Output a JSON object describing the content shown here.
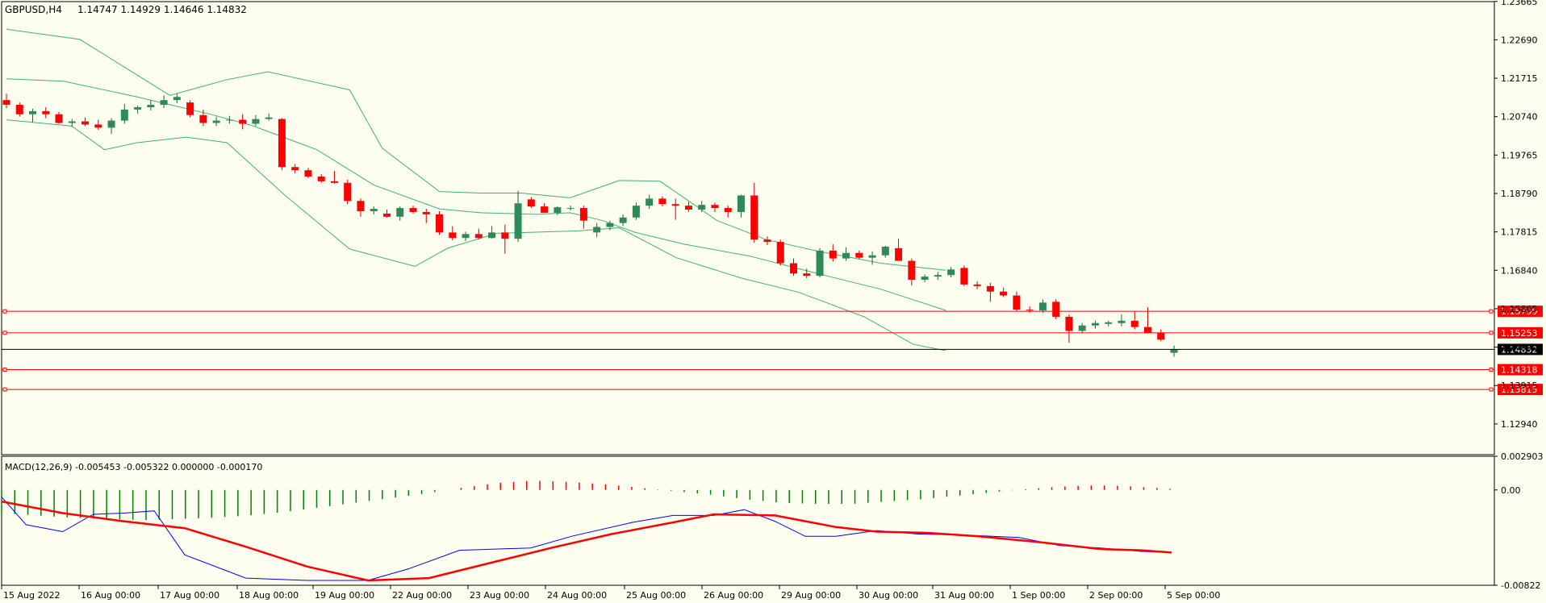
{
  "header": {
    "symbol": "GBPUSD,H4",
    "ohlc": "1.14747 1.14929 1.14646 1.14832"
  },
  "macd": {
    "label": "MACD(12,26,9) -0.005453 -0.005322 0.000000 -0.000170"
  },
  "colors": {
    "background": "#fefef0",
    "bull_candle": "#2e8b57",
    "bear_candle": "#ff0000",
    "bands": "#3cb371",
    "level_line": "#ff0000",
    "macd_signal": "#ff0000",
    "macd_main": "#0000ff",
    "hist_pos": "#ff0000",
    "hist_neg": "#008000"
  },
  "chart_data": [
    {
      "type": "candlestick",
      "name": "price",
      "y_ticks": [
        "1.23665",
        "1.22690",
        "1.21715",
        "1.20740",
        "1.19765",
        "1.18790",
        "1.17815",
        "1.16840",
        "1.15865",
        "1.14890",
        "1.13915",
        "1.12940"
      ],
      "ylim": [
        1.1216,
        1.2366
      ],
      "x_ticks": [
        "15 Aug 2022",
        "16 Aug 00:00",
        "17 Aug 00:00",
        "18 Aug 00:00",
        "19 Aug 00:00",
        "22 Aug 00:00",
        "23 Aug 00:00",
        "24 Aug 00:00",
        "25 Aug 00:00",
        "26 Aug 00:00",
        "29 Aug 00:00",
        "30 Aug 00:00",
        "31 Aug 00:00",
        "1 Sep 00:00",
        "2 Sep 00:00",
        "5 Sep 00:00"
      ],
      "candles": [
        [
          1.2116,
          1.2132,
          1.2096,
          1.2104
        ],
        [
          1.2104,
          1.211,
          1.2074,
          1.208
        ],
        [
          1.208,
          1.2094,
          1.206,
          1.2088
        ],
        [
          1.2088,
          1.2098,
          1.207,
          1.208
        ],
        [
          1.208,
          1.2086,
          1.2056,
          1.2058
        ],
        [
          1.2058,
          1.2068,
          1.2048,
          1.2062
        ],
        [
          1.2062,
          1.2072,
          1.205,
          1.2054
        ],
        [
          1.2054,
          1.2066,
          1.204,
          1.2046
        ],
        [
          1.2046,
          1.207,
          1.203,
          1.2064
        ],
        [
          1.2064,
          1.2106,
          1.2056,
          1.2092
        ],
        [
          1.2092,
          1.2102,
          1.2082,
          1.2098
        ],
        [
          1.2098,
          1.2116,
          1.209,
          1.2104
        ],
        [
          1.2104,
          1.2128,
          1.2096,
          1.2116
        ],
        [
          1.2116,
          1.2132,
          1.2108,
          1.2124
        ],
        [
          1.211,
          1.2116,
          1.2072,
          1.2078
        ],
        [
          1.2078,
          1.2092,
          1.205,
          1.2058
        ],
        [
          1.2058,
          1.2074,
          1.205,
          1.2064
        ],
        [
          1.2064,
          1.2076,
          1.2056,
          1.2066
        ],
        [
          1.2066,
          1.208,
          1.2042,
          1.2056
        ],
        [
          1.2056,
          1.2078,
          1.205,
          1.2068
        ],
        [
          1.2068,
          1.2082,
          1.2064,
          1.2072
        ],
        [
          1.2068,
          1.207,
          1.1938,
          1.1946
        ],
        [
          1.1946,
          1.1954,
          1.193,
          1.1938
        ],
        [
          1.1938,
          1.1944,
          1.1918,
          1.1922
        ],
        [
          1.1922,
          1.1928,
          1.1906,
          1.191
        ],
        [
          1.191,
          1.1936,
          1.1904,
          1.1906
        ],
        [
          1.1906,
          1.1914,
          1.1852,
          1.186
        ],
        [
          1.186,
          1.1866,
          1.182,
          1.1834
        ],
        [
          1.1834,
          1.1846,
          1.1826,
          1.184
        ],
        [
          1.1828,
          1.1838,
          1.1818,
          1.182
        ],
        [
          1.182,
          1.1846,
          1.181,
          1.1842
        ],
        [
          1.1842,
          1.1848,
          1.1828,
          1.1832
        ],
        [
          1.1832,
          1.184,
          1.1804,
          1.1826
        ],
        [
          1.1826,
          1.1834,
          1.1774,
          1.178
        ],
        [
          1.178,
          1.1796,
          1.176,
          1.1766
        ],
        [
          1.1766,
          1.1782,
          1.1758,
          1.1776
        ],
        [
          1.1776,
          1.179,
          1.1762,
          1.1766
        ],
        [
          1.1766,
          1.1796,
          1.1764,
          1.178
        ],
        [
          1.178,
          1.18,
          1.1726,
          1.1764
        ],
        [
          1.1764,
          1.1886,
          1.1756,
          1.1854
        ],
        [
          1.1864,
          1.187,
          1.1842,
          1.1846
        ],
        [
          1.1846,
          1.1854,
          1.183,
          1.183
        ],
        [
          1.183,
          1.1846,
          1.1824,
          1.1844
        ],
        [
          1.184,
          1.1848,
          1.1836,
          1.1842
        ],
        [
          1.1842,
          1.1848,
          1.179,
          1.181
        ],
        [
          1.178,
          1.1804,
          1.1768,
          1.1794
        ],
        [
          1.1794,
          1.181,
          1.1786,
          1.1804
        ],
        [
          1.1804,
          1.1826,
          1.1796,
          1.1818
        ],
        [
          1.1818,
          1.1856,
          1.1812,
          1.1848
        ],
        [
          1.1848,
          1.1876,
          1.184,
          1.1866
        ],
        [
          1.1866,
          1.1872,
          1.1846,
          1.1852
        ],
        [
          1.1852,
          1.1866,
          1.1812,
          1.1848
        ],
        [
          1.1848,
          1.1858,
          1.1832,
          1.1838
        ],
        [
          1.1838,
          1.186,
          1.1832,
          1.185
        ],
        [
          1.185,
          1.1856,
          1.1832,
          1.1842
        ],
        [
          1.1842,
          1.1848,
          1.1818,
          1.1832
        ],
        [
          1.1832,
          1.1876,
          1.1818,
          1.1874
        ],
        [
          1.1874,
          1.1906,
          1.1754,
          1.1762
        ],
        [
          1.1762,
          1.177,
          1.1748,
          1.1756
        ],
        [
          1.1756,
          1.1762,
          1.1696,
          1.1702
        ],
        [
          1.1702,
          1.1714,
          1.167,
          1.1676
        ],
        [
          1.1676,
          1.1688,
          1.1664,
          1.167
        ],
        [
          1.167,
          1.174,
          1.1666,
          1.1734
        ],
        [
          1.1734,
          1.175,
          1.1706,
          1.1714
        ],
        [
          1.1714,
          1.1742,
          1.1708,
          1.1728
        ],
        [
          1.1728,
          1.1734,
          1.1712,
          1.1716
        ],
        [
          1.1716,
          1.1732,
          1.1698,
          1.1722
        ],
        [
          1.1722,
          1.1746,
          1.1716,
          1.1744
        ],
        [
          1.174,
          1.1764,
          1.1712,
          1.1708
        ],
        [
          1.1708,
          1.1714,
          1.1646,
          1.166
        ],
        [
          1.166,
          1.1674,
          1.1654,
          1.1668
        ],
        [
          1.1668,
          1.168,
          1.166,
          1.1672
        ],
        [
          1.1672,
          1.1692,
          1.1666,
          1.1686
        ],
        [
          1.169,
          1.1696,
          1.1644,
          1.1648
        ],
        [
          1.1648,
          1.1656,
          1.1636,
          1.1644
        ],
        [
          1.1644,
          1.1652,
          1.1604,
          1.163
        ],
        [
          1.163,
          1.164,
          1.1616,
          1.162
        ],
        [
          1.162,
          1.163,
          1.158,
          1.1584
        ],
        [
          1.1584,
          1.1592,
          1.1576,
          1.1582
        ],
        [
          1.1582,
          1.161,
          1.1576,
          1.1602
        ],
        [
          1.1604,
          1.161,
          1.156,
          1.1566
        ],
        [
          1.1566,
          1.1572,
          1.15,
          1.153
        ],
        [
          1.153,
          1.155,
          1.1524,
          1.1544
        ],
        [
          1.1544,
          1.1556,
          1.1536,
          1.155
        ],
        [
          1.1548,
          1.1556,
          1.1542,
          1.1552
        ],
        [
          1.155,
          1.1572,
          1.1542,
          1.1556
        ],
        [
          1.1556,
          1.158,
          1.1534,
          1.154
        ],
        [
          1.154,
          1.159,
          1.1524,
          1.1526
        ],
        [
          1.1526,
          1.1534,
          1.1504,
          1.1508
        ],
        [
          1.14747,
          1.14929,
          1.14646,
          1.14832
        ]
      ],
      "bollinger_upper": [
        [
          0,
          1.2296
        ],
        [
          9,
          1.227
        ],
        [
          20,
          1.2128
        ],
        [
          27,
          1.2168
        ],
        [
          32,
          1.2188
        ],
        [
          42,
          1.2142
        ],
        [
          46,
          1.1994
        ],
        [
          53,
          1.1884
        ],
        [
          58,
          1.188
        ],
        [
          63,
          1.188
        ],
        [
          69,
          1.1868
        ],
        [
          75,
          1.1912
        ],
        [
          80,
          1.191
        ],
        [
          87,
          1.181
        ],
        [
          93,
          1.1762
        ],
        [
          99,
          1.1734
        ],
        [
          107,
          1.1702
        ],
        [
          115,
          1.1684
        ]
      ],
      "bollinger_middle": [
        [
          0,
          1.217
        ],
        [
          7,
          1.2164
        ],
        [
          16,
          1.2124
        ],
        [
          25,
          1.208
        ],
        [
          30,
          1.2052
        ],
        [
          38,
          1.199
        ],
        [
          45,
          1.19
        ],
        [
          53,
          1.184
        ],
        [
          58,
          1.183
        ],
        [
          65,
          1.1826
        ],
        [
          69,
          1.183
        ],
        [
          73,
          1.181
        ],
        [
          77,
          1.178
        ],
        [
          83,
          1.175
        ],
        [
          91,
          1.172
        ],
        [
          100,
          1.1672
        ],
        [
          107,
          1.1636
        ],
        [
          115,
          1.1582
        ]
      ],
      "bollinger_lower": [
        [
          0,
          1.2066
        ],
        [
          8,
          1.205
        ],
        [
          12,
          1.199
        ],
        [
          16,
          1.2008
        ],
        [
          22,
          1.2022
        ],
        [
          27,
          1.2008
        ],
        [
          34,
          1.1876
        ],
        [
          42,
          1.1738
        ],
        [
          50,
          1.1694
        ],
        [
          54,
          1.174
        ],
        [
          60,
          1.1778
        ],
        [
          70,
          1.1784
        ],
        [
          75,
          1.1792
        ],
        [
          82,
          1.1716
        ],
        [
          90,
          1.1664
        ],
        [
          97,
          1.1628
        ],
        [
          105,
          1.1566
        ],
        [
          111,
          1.1496
        ],
        [
          115,
          1.148
        ]
      ],
      "levels": [
        "1.15799",
        "1.15253",
        "1.14318",
        "1.13815"
      ],
      "current_price": "1.14832"
    },
    {
      "type": "macd",
      "name": "MACD(12,26,9)",
      "y_ticks": [
        "0.002903",
        "0.00",
        "-0.00822"
      ],
      "ylim": [
        -0.00822,
        0.002903
      ],
      "histogram": [
        -0.002,
        -0.0022,
        -0.0024,
        -0.0025,
        -0.0026,
        -0.0025,
        -0.0024,
        -0.0022,
        -0.0019,
        -0.0015,
        -0.0011,
        -0.0007,
        -0.0003,
        0.0002,
        0.0006,
        0.0008,
        0.0007,
        0.0005,
        0.0002,
        -0.0001,
        -0.0004,
        -0.0008,
        -0.0011,
        -0.0012,
        -0.0012,
        -0.001,
        -0.0008,
        -0.0005,
        -0.0002,
        0.0001,
        0.0003,
        0.0004,
        0.0003,
        0.0001
      ],
      "macd_main": [
        [
          0,
          -0.0006
        ],
        [
          12,
          -0.003
        ],
        [
          30,
          -0.0036
        ],
        [
          45,
          -0.0021
        ],
        [
          60,
          -0.002
        ],
        [
          75,
          -0.0018
        ],
        [
          90,
          -0.0056
        ],
        [
          120,
          -0.0076
        ],
        [
          150,
          -0.0078
        ],
        [
          180,
          -0.0078
        ],
        [
          200,
          -0.0068
        ],
        [
          225,
          -0.0052
        ],
        [
          260,
          -0.005
        ],
        [
          280,
          -0.004
        ],
        [
          310,
          -0.0028
        ],
        [
          330,
          -0.0022
        ],
        [
          350,
          -0.0022
        ],
        [
          365,
          -0.0017
        ],
        [
          380,
          -0.0027
        ],
        [
          395,
          -0.004
        ],
        [
          410,
          -0.004
        ],
        [
          430,
          -0.0035
        ],
        [
          450,
          -0.0038
        ],
        [
          475,
          -0.0039
        ],
        [
          500,
          -0.0041
        ],
        [
          520,
          -0.0048
        ],
        [
          540,
          -0.005
        ],
        [
          560,
          -0.0053
        ],
        [
          575,
          -0.0054
        ]
      ],
      "macd_signal": [
        [
          0,
          -0.001
        ],
        [
          30,
          -0.002
        ],
        [
          60,
          -0.0027
        ],
        [
          90,
          -0.0033
        ],
        [
          120,
          -0.0049
        ],
        [
          150,
          -0.0066
        ],
        [
          180,
          -0.0078
        ],
        [
          210,
          -0.0076
        ],
        [
          240,
          -0.0063
        ],
        [
          270,
          -0.005
        ],
        [
          300,
          -0.0038
        ],
        [
          330,
          -0.0028
        ],
        [
          350,
          -0.0021
        ],
        [
          380,
          -0.0022
        ],
        [
          410,
          -0.0032
        ],
        [
          430,
          -0.0036
        ],
        [
          455,
          -0.0037
        ],
        [
          480,
          -0.004
        ],
        [
          510,
          -0.0045
        ],
        [
          540,
          -0.0051
        ],
        [
          560,
          -0.0052
        ],
        [
          575,
          -0.0054
        ]
      ]
    }
  ]
}
